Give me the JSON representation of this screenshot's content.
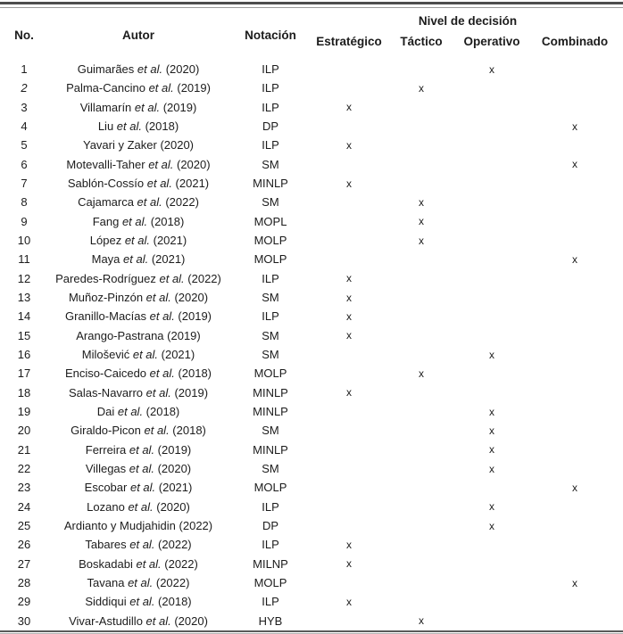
{
  "table": {
    "columns": {
      "no": "No.",
      "author": "Autor",
      "notation": "Notación",
      "decision_group": "Nivel de decisión",
      "levels": [
        "Estratégico",
        "Táctico",
        "Operativo",
        "Combinado"
      ]
    },
    "mark": "x",
    "rows": [
      {
        "no": "1",
        "author": "Guimarães",
        "etal": "et al.",
        "year": "(2020)",
        "notation": "ILP",
        "level": "Operativo"
      },
      {
        "no": "2",
        "no_italic": true,
        "author": "Palma-Cancino",
        "etal": "et al.",
        "year": "(2019)",
        "notation": "ILP",
        "level": "Táctico"
      },
      {
        "no": "3",
        "author": "Villamarín",
        "etal": "et al.",
        "year": "(2019)",
        "notation": "ILP",
        "level": "Estratégico"
      },
      {
        "no": "4",
        "author": "Liu",
        "etal": "et al.",
        "year": "(2018)",
        "notation": "DP",
        "level": "Combinado"
      },
      {
        "no": "5",
        "author": "Yavari y Zaker",
        "etal": "",
        "year": "(2020)",
        "notation": "ILP",
        "level": "Estratégico"
      },
      {
        "no": "6",
        "author": "Motevalli-Taher",
        "etal": "et al.",
        "year": "(2020)",
        "notation": "SM",
        "level": "Combinado"
      },
      {
        "no": "7",
        "author": "Sablón-Cossío",
        "etal": "et al.",
        "year": "(2021)",
        "notation": "MINLP",
        "level": "Estratégico"
      },
      {
        "no": "8",
        "author": "Cajamarca",
        "etal": "et al.",
        "year": "(2022)",
        "notation": "SM",
        "level": "Táctico"
      },
      {
        "no": "9",
        "author": "Fang",
        "etal": "et al.",
        "year": "(2018)",
        "notation": "MOPL",
        "level": "Táctico"
      },
      {
        "no": "10",
        "author": "López",
        "etal": "et al.",
        "year": "(2021)",
        "notation": "MOLP",
        "level": "Táctico"
      },
      {
        "no": "11",
        "author": "Maya",
        "etal": "et al.",
        "year": "(2021)",
        "notation": "MOLP",
        "level": "Combinado"
      },
      {
        "no": "12",
        "author": "Paredes-Rodríguez",
        "etal": "et al.",
        "year": "(2022)",
        "notation": "ILP",
        "level": "Estratégico"
      },
      {
        "no": "13",
        "author": "Muñoz-Pinzón",
        "etal": "et al.",
        "year": "(2020)",
        "notation": "SM",
        "level": "Estratégico"
      },
      {
        "no": "14",
        "author": "Granillo-Macías",
        "etal": "et al.",
        "year": "(2019)",
        "notation": "ILP",
        "level": "Estratégico"
      },
      {
        "no": "15",
        "author": "Arango-Pastrana",
        "etal": "",
        "year": "(2019)",
        "notation": "SM",
        "level": "Estratégico"
      },
      {
        "no": "16",
        "author": "Milošević",
        "etal": "et al.",
        "year": "(2021)",
        "notation": "SM",
        "level": "Operativo"
      },
      {
        "no": "17",
        "author": "Enciso-Caicedo",
        "etal": "et al.",
        "year": "(2018)",
        "notation": "MOLP",
        "level": "Táctico"
      },
      {
        "no": "18",
        "author": "Salas-Navarro",
        "etal": "et al.",
        "year": "(2019)",
        "notation": "MINLP",
        "level": "Estratégico"
      },
      {
        "no": "19",
        "author": "Dai",
        "etal": "et al.",
        "year": "(2018)",
        "notation": "MINLP",
        "level": "Operativo"
      },
      {
        "no": "20",
        "author": "Giraldo-Picon",
        "etal": "et al.",
        "year": "(2018)",
        "notation": "SM",
        "level": "Operativo"
      },
      {
        "no": "21",
        "author": "Ferreira",
        "etal": "et al.",
        "year": "(2019)",
        "notation": "MINLP",
        "level": "Operativo"
      },
      {
        "no": "22",
        "author": "Villegas",
        "etal": "et al.",
        "year": "(2020)",
        "notation": "SM",
        "level": "Operativo"
      },
      {
        "no": "23",
        "author": "Escobar",
        "etal": "et al.",
        "year": "(2021)",
        "notation": "MOLP",
        "level": "Combinado"
      },
      {
        "no": "24",
        "author": "Lozano",
        "etal": "et al.",
        "year": "(2020)",
        "notation": "ILP",
        "level": "Operativo"
      },
      {
        "no": "25",
        "author": "Ardianto y Mudjahidin",
        "etal": "",
        "year": "(2022)",
        "notation": "DP",
        "level": "Operativo"
      },
      {
        "no": "26",
        "author": "Tabares",
        "etal": "et al.",
        "year": "(2022)",
        "notation": "ILP",
        "level": "Estratégico"
      },
      {
        "no": "27",
        "author": "Boskadabi",
        "etal": "et al.",
        "year": "(2022)",
        "notation": "MILNP",
        "level": "Estratégico"
      },
      {
        "no": "28",
        "author": "Tavana",
        "etal": "et al.",
        "year": "(2022)",
        "notation": "MOLP",
        "level": "Combinado"
      },
      {
        "no": "29",
        "author": "Siddiqui",
        "etal": "et al.",
        "year": "(2018)",
        "notation": "ILP",
        "level": "Estratégico"
      },
      {
        "no": "30",
        "author": "Vivar-Astudillo",
        "etal": "et al.",
        "year": "(2020)",
        "notation": "HYB",
        "level": "Táctico"
      }
    ]
  },
  "colors": {
    "text": "#1c1c1c",
    "rule_dark": "#4d4d4d",
    "rule_light": "#9b9b9b",
    "background": "#ffffff"
  }
}
